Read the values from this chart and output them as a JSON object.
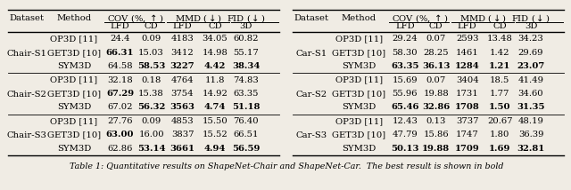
{
  "caption": "Table 1: Quantitative results on ShapeNet-Chair and ShapeNet-Car.  The best result is shown in bold",
  "left_table": {
    "groups": [
      {
        "dataset": "Chair-S1",
        "rows": [
          {
            "method": "OP3D [11]",
            "vals": [
              "24.4",
              "0.09",
              "4183",
              "34.05",
              "60.82"
            ],
            "bold": []
          },
          {
            "method": "GET3D [10]",
            "vals": [
              "66.31",
              "15.03",
              "3412",
              "14.98",
              "55.17"
            ],
            "bold": [
              0
            ]
          },
          {
            "method": "SYM3D",
            "vals": [
              "64.58",
              "58.53",
              "3227",
              "4.42",
              "38.34"
            ],
            "bold": [
              1,
              2,
              3,
              4
            ]
          }
        ]
      },
      {
        "dataset": "Chair-S2",
        "rows": [
          {
            "method": "OP3D [11]",
            "vals": [
              "32.18",
              "0.18",
              "4764",
              "11.8",
              "74.83"
            ],
            "bold": []
          },
          {
            "method": "GET3D [10]",
            "vals": [
              "67.29",
              "15.38",
              "3754",
              "14.92",
              "63.35"
            ],
            "bold": [
              0
            ]
          },
          {
            "method": "SYM3D",
            "vals": [
              "67.02",
              "56.32",
              "3563",
              "4.74",
              "51.18"
            ],
            "bold": [
              1,
              2,
              3,
              4
            ]
          }
        ]
      },
      {
        "dataset": "Chair-S3",
        "rows": [
          {
            "method": "OP3D [11]",
            "vals": [
              "27.76",
              "0.09",
              "4853",
              "15.50",
              "76.40"
            ],
            "bold": []
          },
          {
            "method": "GET3D [10]",
            "vals": [
              "63.00",
              "16.00",
              "3837",
              "15.52",
              "66.51"
            ],
            "bold": [
              0
            ]
          },
          {
            "method": "SYM3D",
            "vals": [
              "62.86",
              "53.14",
              "3661",
              "4.94",
              "56.59"
            ],
            "bold": [
              1,
              2,
              3,
              4
            ]
          }
        ]
      }
    ]
  },
  "right_table": {
    "groups": [
      {
        "dataset": "Car-S1",
        "rows": [
          {
            "method": "OP3D [11]",
            "vals": [
              "29.24",
              "0.07",
              "2593",
              "13.48",
              "34.23"
            ],
            "bold": []
          },
          {
            "method": "GET3D [10]",
            "vals": [
              "58.30",
              "28.25",
              "1461",
              "1.42",
              "29.69"
            ],
            "bold": []
          },
          {
            "method": "SYM3D",
            "vals": [
              "63.35",
              "36.13",
              "1284",
              "1.21",
              "23.07"
            ],
            "bold": [
              0,
              1,
              2,
              3,
              4
            ]
          }
        ]
      },
      {
        "dataset": "Car-S2",
        "rows": [
          {
            "method": "OP3D [11]",
            "vals": [
              "15.69",
              "0.07",
              "3404",
              "18.5",
              "41.49"
            ],
            "bold": []
          },
          {
            "method": "GET3D [10]",
            "vals": [
              "55.96",
              "19.88",
              "1731",
              "1.77",
              "34.60"
            ],
            "bold": []
          },
          {
            "method": "SYM3D",
            "vals": [
              "65.46",
              "32.86",
              "1708",
              "1.50",
              "31.35"
            ],
            "bold": [
              0,
              1,
              2,
              3,
              4
            ]
          }
        ]
      },
      {
        "dataset": "Car-S3",
        "rows": [
          {
            "method": "OP3D [11]",
            "vals": [
              "12.43",
              "0.13",
              "3737",
              "20.67",
              "48.19"
            ],
            "bold": []
          },
          {
            "method": "GET3D [10]",
            "vals": [
              "47.79",
              "15.86",
              "1747",
              "1.80",
              "36.39"
            ],
            "bold": []
          },
          {
            "method": "SYM3D",
            "vals": [
              "50.13",
              "19.88",
              "1709",
              "1.69",
              "32.81"
            ],
            "bold": [
              0,
              1,
              2,
              3,
              4
            ]
          }
        ]
      }
    ]
  },
  "bg_color": "#f0ece4",
  "font_size": 7.2,
  "caption_font_size": 6.8
}
